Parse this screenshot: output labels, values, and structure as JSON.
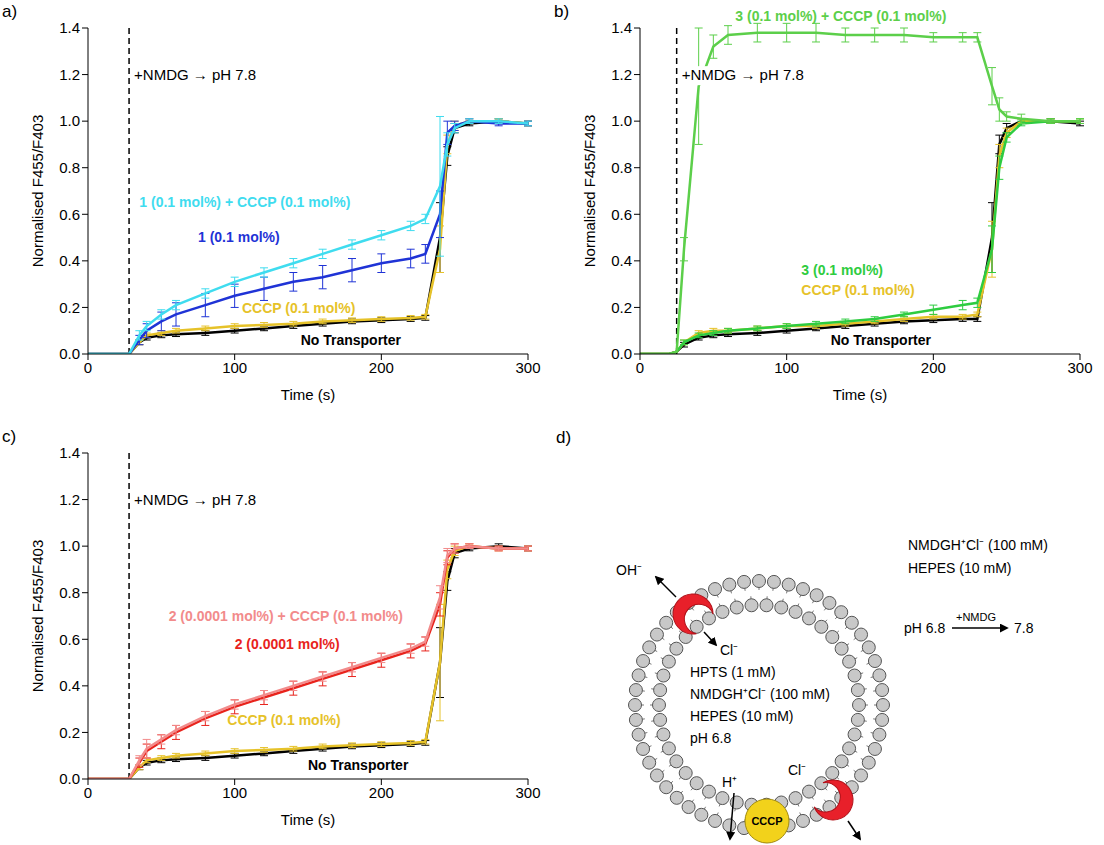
{
  "chart_data": [
    {
      "panel": "a)",
      "type": "line",
      "x_label": "Time (s)",
      "y_label": "Normalised F455/F403",
      "xlim": [
        0,
        300
      ],
      "xticks": [
        0,
        100,
        200,
        300
      ],
      "ylim": [
        0,
        1.4
      ],
      "yticks": [
        {
          "value": 0,
          "label": "0.0"
        },
        0.2,
        0.4,
        0.6,
        0.8,
        {
          "value": 1,
          "label": "1.0"
        },
        1.2,
        1.4
      ],
      "annotations": [
        {
          "text": "+NMDG → pH 7.8",
          "x": 28
        }
      ],
      "x": [
        0,
        10,
        20,
        28,
        35,
        40,
        50,
        60,
        80,
        100,
        120,
        140,
        160,
        180,
        200,
        220,
        230,
        240,
        245,
        250,
        260,
        280,
        300
      ],
      "series": [
        {
          "name": "No Transporter",
          "color": "#000000",
          "values": [
            0,
            0,
            0,
            0,
            0.05,
            0.07,
            0.08,
            0.085,
            0.09,
            0.1,
            0.11,
            0.12,
            0.13,
            0.14,
            0.145,
            0.15,
            0.155,
            0.5,
            0.85,
            0.97,
            0.99,
            1.0,
            0.99
          ],
          "errors": [
            0,
            0,
            0,
            0,
            0.01,
            0.01,
            0.01,
            0.01,
            0.01,
            0.01,
            0.01,
            0.01,
            0.01,
            0.01,
            0.01,
            0.01,
            0.01,
            0.15,
            0.04,
            0.02,
            0.01,
            0.01,
            0.01
          ]
        },
        {
          "name": "CCCP (0.1 mol%)",
          "color": "#e6c229",
          "values": [
            0,
            0,
            0,
            0,
            0.05,
            0.08,
            0.09,
            0.1,
            0.11,
            0.12,
            0.125,
            0.13,
            0.14,
            0.145,
            0.15,
            0.155,
            0.16,
            0.45,
            0.9,
            0.98,
            1.0,
            1.0,
            0.99
          ],
          "errors": [
            0,
            0,
            0,
            0,
            0.01,
            0.01,
            0.01,
            0.01,
            0.01,
            0.01,
            0.01,
            0.01,
            0.01,
            0.01,
            0.01,
            0.01,
            0.01,
            0.1,
            0.04,
            0.02,
            0.01,
            0.01,
            0.01
          ]
        },
        {
          "name": "1 (0.1 mol%)",
          "color": "#1f33d6",
          "values": [
            0,
            0,
            0,
            0,
            0.06,
            0.1,
            0.14,
            0.17,
            0.21,
            0.25,
            0.28,
            0.31,
            0.33,
            0.36,
            0.39,
            0.41,
            0.43,
            0.6,
            0.95,
            0.98,
            1.0,
            0.99,
            0.99
          ],
          "errors": [
            0,
            0,
            0,
            0,
            0.02,
            0.03,
            0.04,
            0.05,
            0.05,
            0.05,
            0.05,
            0.04,
            0.05,
            0.05,
            0.04,
            0.04,
            0.04,
            0.1,
            0.05,
            0.02,
            0.01,
            0.01,
            0.01
          ]
        },
        {
          "name": "1 (0.1 mol%) + CCCP (0.1 mol%)",
          "color": "#3fdcef",
          "values": [
            0,
            0,
            0,
            0,
            0.08,
            0.12,
            0.17,
            0.21,
            0.26,
            0.31,
            0.35,
            0.39,
            0.43,
            0.47,
            0.51,
            0.55,
            0.58,
            0.72,
            0.9,
            0.97,
            1.0,
            1.0,
            0.99
          ],
          "errors": [
            0,
            0,
            0,
            0,
            0.02,
            0.02,
            0.02,
            0.02,
            0.02,
            0.02,
            0.02,
            0.02,
            0.02,
            0.02,
            0.02,
            0.02,
            0.02,
            0.3,
            0.05,
            0.02,
            0.01,
            0.01,
            0.01
          ]
        }
      ]
    },
    {
      "panel": "b)",
      "type": "line",
      "x_label": "Time (s)",
      "y_label": "Normalised F455/F403",
      "xlim": [
        0,
        300
      ],
      "xticks": [
        0,
        100,
        200,
        300
      ],
      "ylim": [
        0,
        1.4
      ],
      "yticks": [
        {
          "value": 0,
          "label": "0.0"
        },
        0.2,
        0.4,
        0.6,
        0.8,
        {
          "value": 1,
          "label": "1.0"
        },
        1.2,
        1.4
      ],
      "annotations": [
        {
          "text": "+NMDG → pH 7.8",
          "x": 25
        }
      ],
      "x": [
        0,
        10,
        20,
        25,
        30,
        40,
        50,
        60,
        80,
        100,
        120,
        140,
        160,
        180,
        200,
        220,
        230,
        240,
        245,
        250,
        260,
        280,
        300
      ],
      "series": [
        {
          "name": "No Transporter",
          "color": "#000000",
          "values": [
            0,
            0,
            0,
            0.01,
            0.04,
            0.07,
            0.08,
            0.085,
            0.09,
            0.1,
            0.11,
            0.12,
            0.13,
            0.14,
            0.145,
            0.15,
            0.15,
            0.5,
            0.9,
            0.97,
            1.0,
            1.0,
            0.99
          ],
          "errors": [
            0,
            0,
            0,
            0,
            0.01,
            0.01,
            0.01,
            0.01,
            0.01,
            0.01,
            0.01,
            0.01,
            0.01,
            0.01,
            0.01,
            0.01,
            0.01,
            0.15,
            0.04,
            0.02,
            0.01,
            0.01,
            0.01
          ]
        },
        {
          "name": "CCCP (0.1 mol%)",
          "color": "#e6c229",
          "values": [
            0,
            0,
            0,
            0.01,
            0.05,
            0.09,
            0.1,
            0.1,
            0.11,
            0.12,
            0.12,
            0.13,
            0.14,
            0.15,
            0.16,
            0.16,
            0.17,
            0.45,
            0.85,
            0.95,
            1.0,
            1.0,
            1.0
          ],
          "errors": [
            0,
            0,
            0,
            0,
            0.01,
            0.01,
            0.01,
            0.01,
            0.01,
            0.01,
            0.01,
            0.01,
            0.01,
            0.01,
            0.01,
            0.01,
            0.01,
            0.12,
            0.05,
            0.02,
            0.01,
            0.01,
            0.01
          ]
        },
        {
          "name": "3 (0.1 mol%)",
          "color": "#2ecc40",
          "values": [
            0,
            0,
            0,
            0.01,
            0.05,
            0.08,
            0.09,
            0.1,
            0.11,
            0.12,
            0.13,
            0.14,
            0.15,
            0.17,
            0.19,
            0.21,
            0.22,
            0.45,
            0.8,
            0.93,
            0.99,
            1.0,
            1.0
          ],
          "errors": [
            0,
            0,
            0,
            0,
            0.01,
            0.01,
            0.01,
            0.01,
            0.01,
            0.01,
            0.01,
            0.01,
            0.01,
            0.01,
            0.02,
            0.02,
            0.02,
            0.1,
            0.05,
            0.02,
            0.01,
            0.01,
            0.01
          ]
        },
        {
          "name": "3 (0.1 mol%) + CCCP (0.1 mol%)",
          "color": "#5ccf4a",
          "values": [
            0,
            0,
            0,
            0.01,
            0.45,
            1.15,
            1.32,
            1.37,
            1.38,
            1.38,
            1.38,
            1.37,
            1.37,
            1.37,
            1.36,
            1.36,
            1.36,
            1.15,
            1.05,
            1.02,
            1.01,
            1.0,
            1.0
          ],
          "errors": [
            0,
            0,
            0,
            0,
            0.05,
            0.25,
            0.05,
            0.04,
            0.04,
            0.04,
            0.04,
            0.03,
            0.03,
            0.03,
            0.02,
            0.02,
            0.02,
            0.08,
            0.05,
            0.02,
            0.02,
            0.01,
            0.01
          ]
        }
      ]
    },
    {
      "panel": "c)",
      "type": "line",
      "x_label": "Time (s)",
      "y_label": "Normalised F455/F403",
      "xlim": [
        0,
        300
      ],
      "xticks": [
        0,
        100,
        200,
        300
      ],
      "ylim": [
        0,
        1.4
      ],
      "yticks": [
        {
          "value": 0,
          "label": "0.0"
        },
        0.2,
        0.4,
        0.6,
        0.8,
        {
          "value": 1,
          "label": "1.0"
        },
        1.2,
        1.4
      ],
      "annotations": [
        {
          "text": "+NMDG → pH 7.8",
          "x": 28
        }
      ],
      "x": [
        0,
        10,
        20,
        28,
        35,
        40,
        50,
        60,
        80,
        100,
        120,
        140,
        160,
        180,
        200,
        220,
        230,
        240,
        245,
        250,
        260,
        280,
        300
      ],
      "series": [
        {
          "name": "No Transporter",
          "color": "#000000",
          "values": [
            0,
            0,
            0,
            0,
            0.05,
            0.07,
            0.08,
            0.085,
            0.09,
            0.1,
            0.11,
            0.12,
            0.13,
            0.14,
            0.145,
            0.15,
            0.155,
            0.5,
            0.85,
            0.97,
            0.99,
            1.0,
            0.99
          ],
          "errors": [
            0,
            0,
            0,
            0,
            0.01,
            0.01,
            0.01,
            0.01,
            0.01,
            0.01,
            0.01,
            0.01,
            0.01,
            0.01,
            0.01,
            0.01,
            0.01,
            0.15,
            0.04,
            0.02,
            0.01,
            0.01,
            0.01
          ]
        },
        {
          "name": "CCCP (0.1 mol%)",
          "color": "#e6c229",
          "values": [
            0,
            0,
            0,
            0,
            0.05,
            0.08,
            0.09,
            0.1,
            0.11,
            0.12,
            0.125,
            0.13,
            0.14,
            0.145,
            0.15,
            0.155,
            0.16,
            0.5,
            0.9,
            0.98,
            1.0,
            0.99,
            0.99
          ],
          "errors": [
            0,
            0,
            0,
            0,
            0.01,
            0.01,
            0.01,
            0.01,
            0.01,
            0.01,
            0.01,
            0.01,
            0.01,
            0.01,
            0.01,
            0.01,
            0.01,
            0.25,
            0.04,
            0.02,
            0.01,
            0.01,
            0.01
          ]
        },
        {
          "name": "2 (0.0001 mol%)",
          "color": "#e8231c",
          "values": [
            0,
            0,
            0,
            0,
            0.07,
            0.12,
            0.16,
            0.2,
            0.26,
            0.31,
            0.35,
            0.39,
            0.43,
            0.47,
            0.51,
            0.55,
            0.58,
            0.75,
            0.95,
            0.99,
            1.0,
            0.99,
            0.99
          ],
          "errors": [
            0,
            0,
            0,
            0,
            0.02,
            0.03,
            0.03,
            0.03,
            0.03,
            0.03,
            0.03,
            0.03,
            0.03,
            0.03,
            0.03,
            0.03,
            0.03,
            0.05,
            0.03,
            0.02,
            0.01,
            0.01,
            0.01
          ]
        },
        {
          "name": "2 (0.0001 mol%) + CCCP (0.1 mol%)",
          "color": "#f28b8b",
          "values": [
            0,
            0,
            0,
            0,
            0.08,
            0.13,
            0.17,
            0.21,
            0.27,
            0.32,
            0.36,
            0.4,
            0.44,
            0.48,
            0.52,
            0.56,
            0.59,
            0.78,
            0.96,
            0.99,
            1.0,
            0.99,
            0.99
          ],
          "errors": [
            0,
            0,
            0,
            0,
            0.02,
            0.04,
            0.02,
            0.02,
            0.02,
            0.02,
            0.02,
            0.02,
            0.02,
            0.02,
            0.02,
            0.02,
            0.02,
            0.05,
            0.03,
            0.02,
            0.01,
            0.01,
            0.01
          ]
        }
      ]
    }
  ],
  "diagram": {
    "panel": "d)",
    "outside": [
      "NMDGH⁺Cl⁻ (100 mM)",
      "HEPES (10 mM)"
    ],
    "ph_change": {
      "from": "pH 6.8",
      "reagent": "+NMDG",
      "to": "7.8"
    },
    "inside": [
      "HPTS (1 mM)",
      "NMDGH⁺Cl⁻ (100 mM)",
      "HEPES (10 mM)",
      "pH 6.8"
    ],
    "top_carrier": {
      "out": "OH⁻",
      "in": "Cl⁻"
    },
    "protonophore": {
      "label": "CCCP",
      "ion": "H⁺"
    },
    "bottom_carrier": {
      "ion": "Cl⁻"
    }
  }
}
